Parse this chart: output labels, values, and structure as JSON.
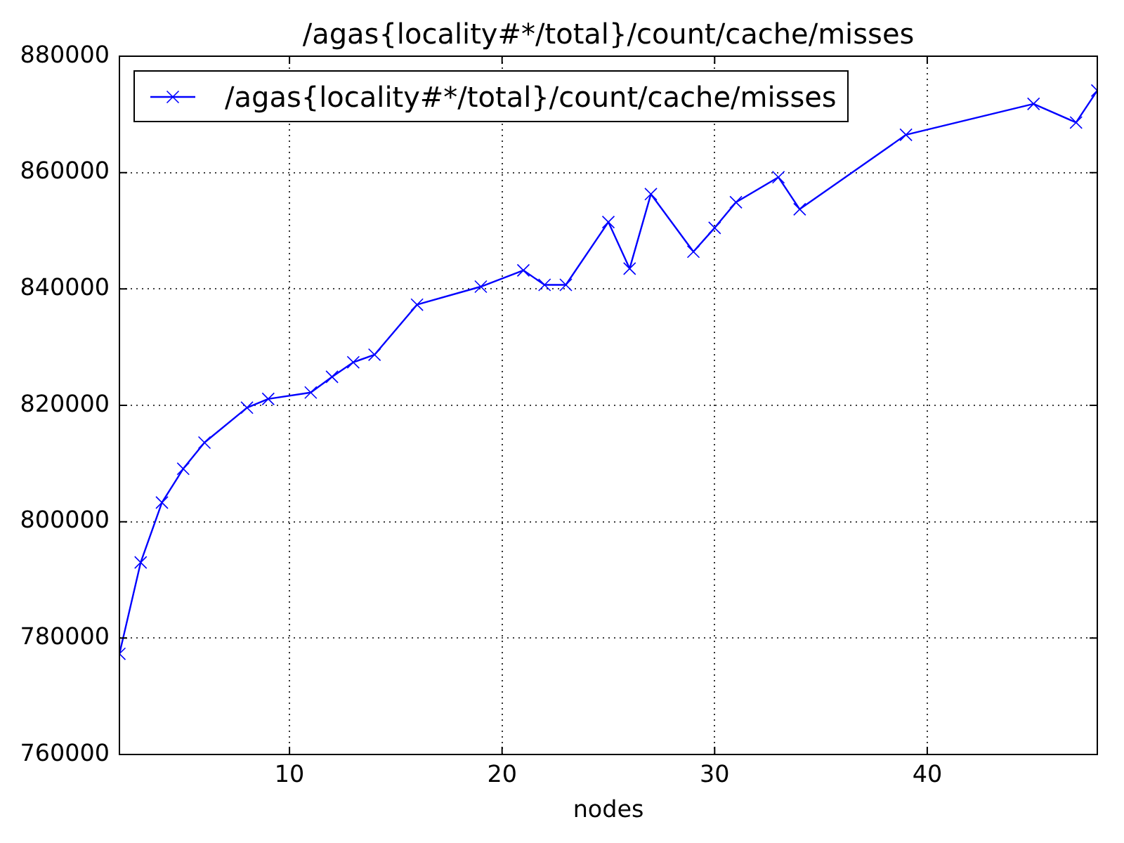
{
  "chart_data": {
    "type": "line",
    "title": "/agas{locality#*/total}/count/cache/misses",
    "xlabel": "nodes",
    "x": [
      2,
      3,
      4,
      5,
      6,
      8,
      9,
      11,
      12,
      13,
      14,
      16,
      19,
      21,
      22,
      23,
      25,
      26,
      27,
      29,
      30,
      31,
      33,
      34,
      39,
      45,
      47,
      48
    ],
    "series": [
      {
        "name": "/agas{locality#*/total}/count/cache/misses",
        "color": "#0000ff",
        "values": [
          777300,
          793000,
          803300,
          809100,
          813600,
          819600,
          821100,
          822200,
          824900,
          827400,
          828700,
          837300,
          840400,
          843200,
          840700,
          840700,
          851500,
          843500,
          856300,
          846400,
          850500,
          854900,
          859200,
          853700,
          866500,
          871800,
          868600,
          874100
        ]
      }
    ],
    "xlim": [
      2,
      48
    ],
    "xticks": [
      10,
      20,
      30,
      40
    ],
    "ylim": [
      760000,
      880000
    ],
    "yticks": [
      760000,
      780000,
      800000,
      820000,
      840000,
      860000,
      880000
    ],
    "grid": true,
    "legend": "top left",
    "marker": "cross",
    "line_style": "solid"
  }
}
